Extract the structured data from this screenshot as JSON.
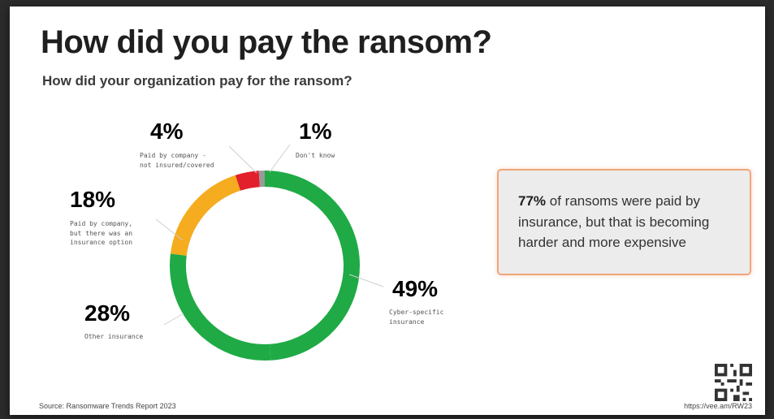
{
  "header": {
    "title": "How did you pay the ransom?",
    "subtitle": "How did your organization pay for the ransom?"
  },
  "chart_data": {
    "type": "pie",
    "variant": "donut",
    "title": "How did you pay the ransom?",
    "subtitle": "How did your organization pay for the ransom?",
    "slices": [
      {
        "label": "Cyber-specific insurance",
        "value": 49,
        "display": "49%",
        "color": "#1faa46"
      },
      {
        "label": "Other insurance",
        "value": 28,
        "display": "28%",
        "color": "#1faa46"
      },
      {
        "label": "Paid by company, but there was an insurance option",
        "value": 18,
        "display": "18%",
        "color": "#f5ac1e"
      },
      {
        "label": "Paid by company - not insured/covered",
        "value": 4,
        "display": "4%",
        "color": "#e2202b"
      },
      {
        "label": "Don't know",
        "value": 1,
        "display": "1%",
        "color": "#9a9a9a"
      }
    ]
  },
  "callout": {
    "bold": "77%",
    "text": " of ransoms were paid by insurance, but that is becoming harder and more expensive"
  },
  "footer": {
    "source": "Source: Ransomware Trends Report 2023",
    "url": "https://vee.am/RW23"
  }
}
